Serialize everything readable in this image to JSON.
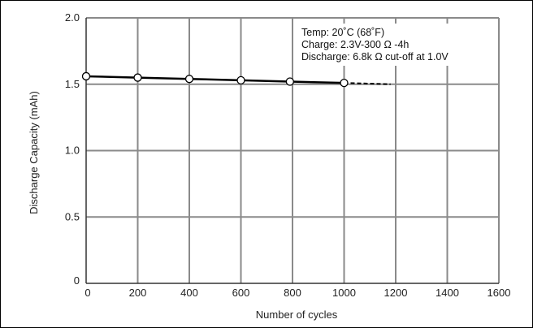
{
  "chart_data": {
    "type": "line",
    "xlabel": "Number of cycles",
    "ylabel": "Discharge Capacity (mAh)",
    "xlim": [
      0,
      1600
    ],
    "ylim": [
      0,
      2.0
    ],
    "x_ticks": [
      "0",
      "200",
      "400",
      "600",
      "800",
      "1000",
      "1200",
      "1400",
      "1600"
    ],
    "y_ticks": [
      "0",
      "0.5",
      "1.0",
      "1.5",
      "2.0"
    ],
    "grid": true,
    "series": [
      {
        "points": [
          {
            "x": 0,
            "y": 1.56
          },
          {
            "x": 200,
            "y": 1.55
          },
          {
            "x": 400,
            "y": 1.54
          },
          {
            "x": 600,
            "y": 1.53
          },
          {
            "x": 790,
            "y": 1.52
          },
          {
            "x": 1000,
            "y": 1.51
          }
        ],
        "extrapolation": [
          {
            "x": 1000,
            "y": 1.51
          },
          {
            "x": 1180,
            "y": 1.5
          }
        ]
      }
    ],
    "annotations": [
      "Temp: 20˚C (68˚F)",
      "Charge: 2.3V-300 Ω -4h",
      "Discharge: 6.8k Ω cut-off at 1.0V"
    ],
    "annotation_position": "top-right"
  }
}
